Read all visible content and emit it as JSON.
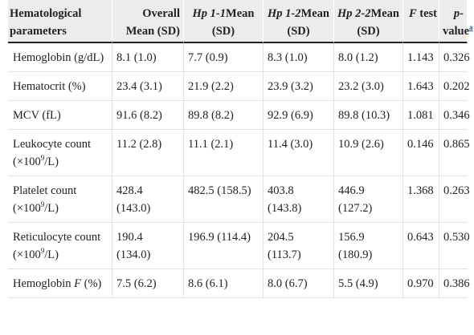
{
  "header": {
    "param_label": "Hematological parameters",
    "overall_label": "Overall Mean (SD)",
    "hp11_prefix": "Hp 1-1",
    "hp11_suffix": "Mean (SD)",
    "hp12_prefix": "Hp 1-2",
    "hp12_suffix": "Mean (SD)",
    "hp22_prefix": "Hp 2-2",
    "hp22_suffix": "Mean (SD)",
    "ftest_letter": "F",
    "ftest_word": "test",
    "pvalue_prefix": "p-",
    "pvalue_word": "value",
    "pvalue_footnote": "a"
  },
  "rows": [
    {
      "param": "Hemoglobin (g/dL)",
      "overall": "8.1 (1.0)",
      "hp11": "7.7 (0.9)",
      "hp12": "8.3 (1.0)",
      "hp22": "8.0 (1.2)",
      "f": "1.143",
      "p": "0.326"
    },
    {
      "param": "Hematocrit (%)",
      "overall": "23.4 (3.1)",
      "hp11": "21.9 (2.2)",
      "hp12": "23.9 (3.2)",
      "hp22": "23.2 (3.0)",
      "f": "1.643",
      "p": "0.202"
    },
    {
      "param": "MCV (fL)",
      "overall": "91.6 (8.2)",
      "hp11": "89.8 (8.2)",
      "hp12": "92.9 (6.9)",
      "hp22": "89.8 (10.3)",
      "f": "1.081",
      "p": "0.346"
    },
    {
      "param_text": "Leukocyte count (×100",
      "param_sup": "9",
      "param_after": "/L)",
      "overall": "11.2 (2.8)",
      "hp11": "11.1 (2.1)",
      "hp12": "11.4 (3.0)",
      "hp22": "10.9 (2.6)",
      "f": "0.146",
      "p": "0.865"
    },
    {
      "param_text": "Platelet count (×100",
      "param_sup": "9",
      "param_after": "/L)",
      "overall": "428.4 (143.0)",
      "hp11": "482.5 (158.5)",
      "hp12": "403.8 (143.8)",
      "hp22": "446.9 (127.2)",
      "f": "1.368",
      "p": "0.263"
    },
    {
      "param_text": "Reticulocyte count (×100",
      "param_sup": "9",
      "param_after": "/L)",
      "overall": "190.4 (134.0)",
      "hp11": "196.9 (114.4)",
      "hp12": "204.5 (113.7)",
      "hp22": "156.9 (180.9)",
      "f": "0.643",
      "p": "0.530"
    },
    {
      "param_text": "Hemoglobin ",
      "param_it": "F",
      "param_after": " (%)",
      "overall": "7.5 (6.2)",
      "hp11": "8.6 (6.1)",
      "hp12": "8.0 (6.7)",
      "hp22": "5.5 (4.9)",
      "f": "0.970",
      "p": "0.386"
    }
  ]
}
